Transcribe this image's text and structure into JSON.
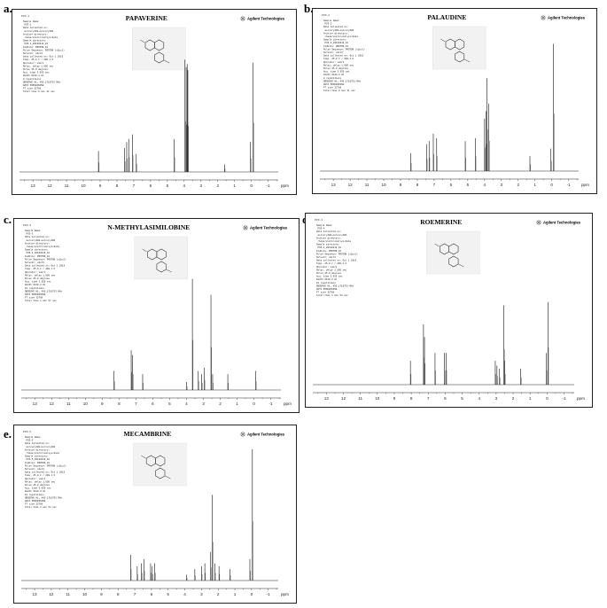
{
  "panels": [
    {
      "letter": "a.",
      "title": "PAPAVERINE",
      "header": "PCO-1",
      "params": [
        "Sample Name:",
        "  PCO-1",
        "Data Collected on:",
        "  mercury400-mercury400",
        "Archive directory:",
        "  /home/vnmr1/vnmrsys/data",
        "Sample directory:",
        "  PCO-1_20191010_01",
        "FidFile: PROTON_01",
        "",
        "Pulse Sequence: PROTON (s2pul)",
        "Solvent: cdcl3",
        "Data collected on: Oct 1 2019",
        "",
        "Temp. 25.0 C / 298.1 K",
        "Operator: vnmr1",
        "",
        "Relax. delay 1.000 sec",
        "Pulse 45.0 degrees",
        "Acq. time 3.959 sec",
        "Width 6410.3 Hz",
        "8 repetitions",
        "OBSERVE H1, 400.1716753 MHz",
        "DATA PROCESSING",
        "FT size 32768",
        "Total time 0 min 41 sec"
      ],
      "peaks": [
        [
          9.1,
          0.14
        ],
        [
          7.55,
          0.16
        ],
        [
          7.42,
          0.2
        ],
        [
          7.3,
          0.22
        ],
        [
          7.08,
          0.25
        ],
        [
          6.85,
          0.12
        ],
        [
          4.6,
          0.22
        ],
        [
          3.95,
          0.75
        ],
        [
          3.88,
          0.7
        ],
        [
          3.82,
          0.72
        ],
        [
          3.78,
          0.68
        ],
        [
          1.6,
          0.05
        ],
        [
          0.05,
          0.2
        ],
        [
          -0.1,
          0.73
        ]
      ]
    },
    {
      "letter": "b.",
      "title": "PALAUDINE",
      "header": "PCO-2",
      "params": [
        "Sample Name:",
        "  PCO-2",
        "Data Collected on:",
        "  mercury400-mercury400",
        "Archive directory:",
        "  /home/vnmr1/vnmrsys/data",
        "Sample directory:",
        "  PCO-2_20191010_01",
        "FidFile: PROTON_01",
        "",
        "Pulse Sequence: PROTON (s2pul)",
        "Solvent: cdcl3",
        "Data collected on: Oct 1 2019",
        "",
        "Temp. 25.0 C / 298.1 K",
        "Operator: vnmr1",
        "",
        "Relax. delay 1.000 sec",
        "Pulse 45.0 degrees",
        "Acq. time 3.959 sec",
        "Width 6410.3 Hz",
        "8 repetitions",
        "OBSERVE H1, 400.1716753 MHz",
        "DATA PROCESSING",
        "FT size 32768",
        "Total time 0 min 41 sec"
      ],
      "peaks": [
        [
          8.4,
          0.12
        ],
        [
          7.45,
          0.18
        ],
        [
          7.3,
          0.2
        ],
        [
          7.05,
          0.25
        ],
        [
          6.85,
          0.22
        ],
        [
          5.15,
          0.2
        ],
        [
          4.55,
          0.22
        ],
        [
          4.0,
          0.35
        ],
        [
          3.92,
          0.4
        ],
        [
          3.85,
          0.62
        ],
        [
          3.75,
          0.45
        ],
        [
          1.3,
          0.1
        ],
        [
          0.05,
          0.15
        ],
        [
          -0.1,
          0.85
        ]
      ]
    },
    {
      "letter": "c.",
      "title": "N-METHYLASIMILOBINE",
      "header": "PCO-3",
      "params": [
        "Sample Name:",
        "  PCO-3",
        "Data Collected on:",
        "  mercury400-mercury400",
        "Archive directory:",
        "  /home/vnmr1/vnmrsys/data",
        "Sample directory:",
        "  PCO-3_20191010_01",
        "FidFile: PROTON_01",
        "",
        "Pulse Sequence: PROTON (s2pul)",
        "Solvent: cdcl3",
        "Data collected on: Oct 1 2019",
        "",
        "Temp. 25.0 C / 298.1 K",
        "Operator: vnmr1",
        "",
        "Relax. delay 1.000 sec",
        "Pulse 45.0 degrees",
        "Acq. time 3.959 sec",
        "Width 6410.3 Hz",
        "16 repetitions",
        "OBSERVE H1, 400.1716753 MHz",
        "DATA PROCESSING",
        "FT size 32768",
        "Total time 1 min 57 sec"
      ],
      "peaks": [
        [
          8.3,
          0.12
        ],
        [
          7.28,
          0.25
        ],
        [
          7.2,
          0.22
        ],
        [
          6.6,
          0.1
        ],
        [
          4.0,
          0.05
        ],
        [
          3.65,
          0.7
        ],
        [
          3.3,
          0.12
        ],
        [
          3.1,
          0.1
        ],
        [
          2.95,
          0.14
        ],
        [
          2.55,
          0.6
        ],
        [
          2.45,
          0.1
        ],
        [
          1.55,
          0.1
        ],
        [
          -0.1,
          0.12
        ]
      ]
    },
    {
      "letter": "d.",
      "title": "ROEMERINE",
      "header": "PCO-4",
      "params": [
        "Sample Name:",
        "  PCO-4",
        "Data Collected on:",
        "  mercury400-mercury400",
        "Archive directory:",
        "  /home/vnmr1/vnmrsys/data",
        "Sample directory:",
        "  PCO-4_20191010_01",
        "FidFile: PROTON_01",
        "",
        "Pulse Sequence: PROTON (s2pul)",
        "Solvent: cdcl3",
        "Data collected on: Oct 1 2019",
        "",
        "Temp. 25.0 C / 298.1 K",
        "Operator: vnmr1",
        "",
        "Relax. delay 1.000 sec",
        "Pulse 45.0 degrees",
        "Acq. time 3.959 sec",
        "Width 6410.3 Hz",
        "16 repetitions",
        "OBSERVE H1, 400.1716753 MHz",
        "DATA PROCESSING",
        "FT size 32768",
        "Total time 1 min 54 sec"
      ],
      "peaks": [
        [
          8.05,
          0.15
        ],
        [
          7.28,
          0.38
        ],
        [
          7.22,
          0.3
        ],
        [
          6.6,
          0.2
        ],
        [
          6.05,
          0.2
        ],
        [
          5.95,
          0.2
        ],
        [
          3.05,
          0.15
        ],
        [
          2.95,
          0.12
        ],
        [
          2.8,
          0.1
        ],
        [
          2.55,
          0.5
        ],
        [
          2.5,
          0.15
        ],
        [
          1.55,
          0.1
        ],
        [
          0.05,
          0.2
        ],
        [
          -0.05,
          0.52
        ]
      ]
    },
    {
      "letter": "e.",
      "title": "MECAMBRINE",
      "header": "PCO-5",
      "params": [
        "Sample Name:",
        "  PCO-5",
        "Data Collected on:",
        "  mercury400-mercury400",
        "Archive directory:",
        "  /home/vnmr1/vnmrsys/data",
        "Sample directory:",
        "  PCO-5_20191010_01",
        "FidFile: PROTON_01",
        "",
        "Pulse Sequence: PROTON (s2pul)",
        "Solvent: cdcl3",
        "Data collected on: Oct 1 2019",
        "",
        "Temp. 25.0 C / 298.1 K",
        "Operator: vnmr1",
        "",
        "Relax. delay 1.000 sec",
        "Pulse 45.0 degrees",
        "Acq. time 3.959 sec",
        "Width 6410.3 Hz",
        "16 repetitions",
        "OBSERVE H1, 400.1716753 MHz",
        "DATA PROCESSING",
        "FT size 32768",
        "Total time 2 min 54 sec"
      ],
      "peaks": [
        [
          7.25,
          0.18
        ],
        [
          6.85,
          0.1
        ],
        [
          6.6,
          0.12
        ],
        [
          6.45,
          0.15
        ],
        [
          6.05,
          0.12
        ],
        [
          5.95,
          0.1
        ],
        [
          5.8,
          0.12
        ],
        [
          3.9,
          0.04
        ],
        [
          3.4,
          0.08
        ],
        [
          3.0,
          0.1
        ],
        [
          2.8,
          0.12
        ],
        [
          2.45,
          0.2
        ],
        [
          2.35,
          0.6
        ],
        [
          2.2,
          0.12
        ],
        [
          1.95,
          0.1
        ],
        [
          1.3,
          0.08
        ],
        [
          0.1,
          0.15
        ],
        [
          -0.05,
          0.92
        ]
      ]
    }
  ],
  "logo_text": "Agilent Technologies",
  "axis": {
    "ticks": [
      "13",
      "12",
      "11",
      "10",
      "9",
      "8",
      "7",
      "6",
      "5",
      "4",
      "3",
      "2",
      "1",
      "0",
      "-1"
    ],
    "unit": "ppm",
    "ppm_max": 13.8,
    "ppm_min": -1.6
  }
}
